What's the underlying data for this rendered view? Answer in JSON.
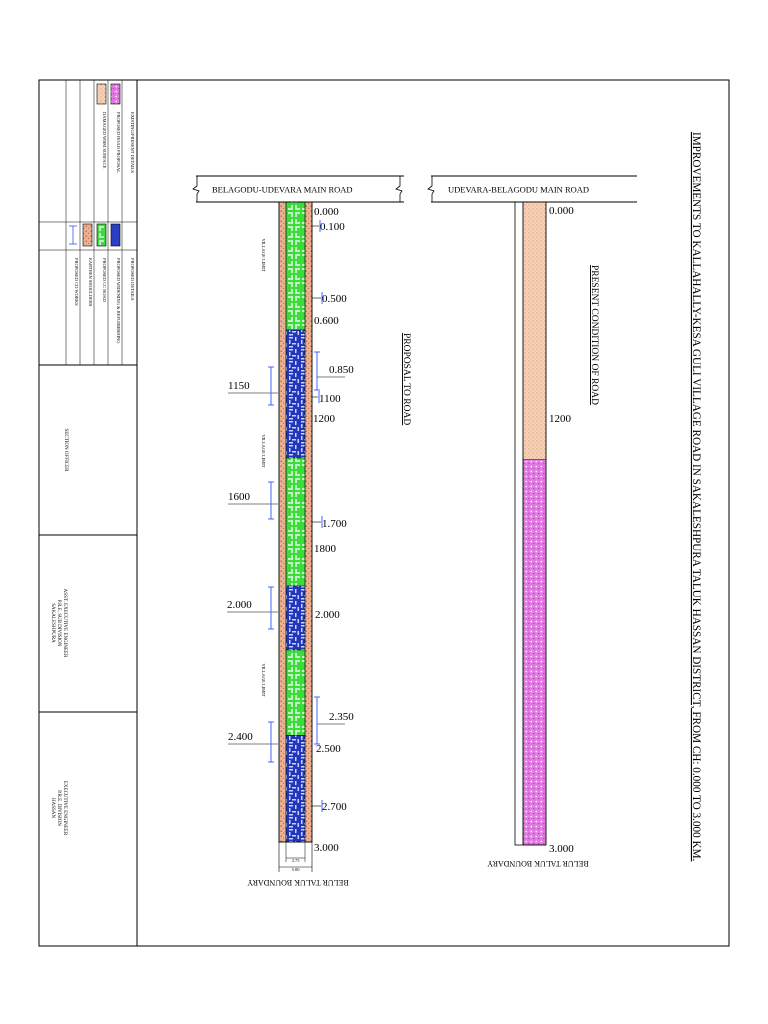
{
  "main_title": "IMPROVEMENTS TO KALLAHALLY-KESA GULI VILLAGE ROAD IN SAKALESHPURA TALUK HASSAN DISTRICT, FROM CH: 0.000 TO 3.000 KM.",
  "sidebar": {
    "existing_section": {
      "heading": "EXISTING/PRESENT DETAILS",
      "items": [
        {
          "label": "PROPOSED ROAD PROPOSAL",
          "color": "#d96adf"
        },
        {
          "label": "DAMAGED WBM SURFACE",
          "color": "#e8b89a"
        }
      ]
    },
    "proposed_section": {
      "heading": "PROPOSED DETAILS",
      "items": [
        {
          "label": "PROPOSED WIDENING & REFURBISHING",
          "color": "#2a3fc4"
        },
        {
          "label": "PROPOSED CC ROAD",
          "color": "#22c322"
        },
        {
          "label": "EARTHEN SHOULDERS",
          "color": "#e8b89a"
        },
        {
          "label": "PROPOSED CD WORKS",
          "color": "#3355ff"
        }
      ]
    },
    "section_officer": "SECTION OFFICER",
    "asst_engineer": [
      "ASST. EXECUTIVE ENGINEER",
      "P.R.E. SUB DIVISION",
      "SAKALESHPURA"
    ],
    "exec_engineer": [
      "EXECUTIVE ENGINEER",
      "P.R.E. DIVISION",
      "HASSAN"
    ]
  },
  "proposal": {
    "road_name": "BELAGODU-UDEVARA MAIN ROAD",
    "heading": "PROPOSAL TO ROAD",
    "boundary": "BELUR TALUK BOUNDARY",
    "village_limit": "VILLAGE LIMIT",
    "right_chainages": [
      "0.000",
      "0.100",
      "0.500",
      "0.600",
      "0.850",
      "1100",
      "1200",
      "1.700",
      "1800",
      "2.000",
      "2.350",
      "2.500",
      "2.700",
      "3.000"
    ],
    "left_chainages": [
      "1150",
      "1600",
      "2.000",
      "2.400"
    ],
    "width_inner": "3.75",
    "width_outer": "5.00",
    "segments": [
      {
        "type": "cc",
        "from": 0.0,
        "to": 0.6
      },
      {
        "type": "bt",
        "from": 0.6,
        "to": 1.2
      },
      {
        "type": "cc",
        "from": 1.2,
        "to": 1.8
      },
      {
        "type": "bt",
        "from": 1.8,
        "to": 2.1
      },
      {
        "type": "cc",
        "from": 2.1,
        "to": 2.5
      },
      {
        "type": "bt",
        "from": 2.5,
        "to": 3.0
      }
    ]
  },
  "present": {
    "road_name": "UDEVARA-BELAGODU MAIN ROAD",
    "heading": "PRESENT CONDITION OF ROAD",
    "boundary": "BELUR TALUK BOUNDARY",
    "chainages": [
      "0.000",
      "1200",
      "3.000"
    ],
    "segments": [
      {
        "type": "wbm",
        "from": 0.0,
        "to": 1.2
      },
      {
        "type": "damaged",
        "from": 1.2,
        "to": 3.0
      }
    ]
  },
  "colors": {
    "cc_road": "#2fd12f",
    "bt_road": "#2c3ec4",
    "shoulder": "#e3a07e",
    "damaged": "#d86ad8",
    "wbm": "#f0c7a6"
  }
}
